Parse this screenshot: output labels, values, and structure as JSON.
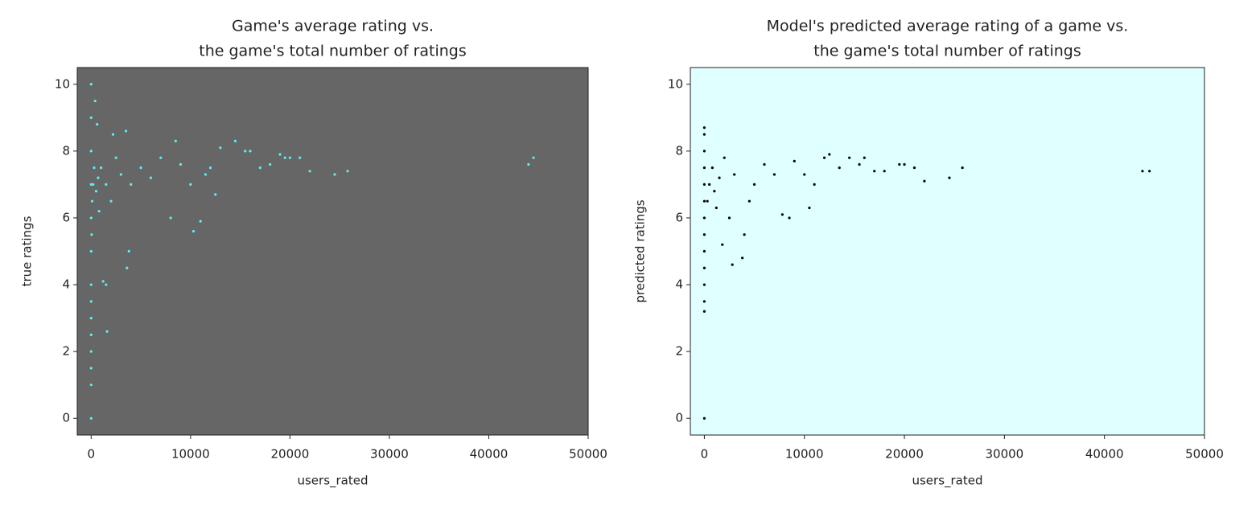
{
  "chart_data": [
    {
      "type": "scatter",
      "title": [
        "Game's average rating vs.",
        "the game's total number of ratings"
      ],
      "xlabel": "users_rated",
      "ylabel": "true ratings",
      "color": "#5ef0f0",
      "background": "#666666",
      "xlim": [
        -1400,
        50000
      ],
      "ylim": [
        -0.5,
        10.5
      ],
      "xticks": [
        0,
        10000,
        20000,
        30000,
        40000,
        50000
      ],
      "yticks": [
        0,
        2,
        4,
        6,
        8,
        10
      ],
      "x": [
        0,
        0,
        0,
        0,
        0,
        0,
        0,
        0,
        0,
        0,
        0,
        0,
        0,
        0,
        50,
        100,
        200,
        300,
        500,
        700,
        1000,
        1500,
        1600,
        1200,
        1500,
        2000,
        2500,
        3000,
        3500,
        3800,
        3600,
        4000,
        5000,
        6000,
        7000,
        8000,
        8500,
        9000,
        10000,
        10300,
        11000,
        11500,
        12000,
        12500,
        13000,
        14500,
        15500,
        16000,
        17000,
        18000,
        19000,
        19500,
        20000,
        21000,
        22000,
        24500,
        25800,
        44000,
        44500,
        600,
        400,
        800,
        2200
      ],
      "y": [
        0,
        1,
        1.5,
        2,
        2.5,
        3,
        3.5,
        4,
        5,
        6,
        7,
        8,
        9,
        10,
        5.5,
        6.5,
        7,
        7.5,
        6.8,
        7.2,
        7.5,
        7,
        2.6,
        4.1,
        4.0,
        6.5,
        7.8,
        7.3,
        8.6,
        5.0,
        4.5,
        7.0,
        7.5,
        7.2,
        7.8,
        6.0,
        8.3,
        7.6,
        7.0,
        5.6,
        5.9,
        7.3,
        7.5,
        6.7,
        8.1,
        8.3,
        8.0,
        8.0,
        7.5,
        7.6,
        7.9,
        7.8,
        7.8,
        7.8,
        7.4,
        7.3,
        7.4,
        7.6,
        7.8,
        8.8,
        9.5,
        6.2,
        8.5
      ]
    },
    {
      "type": "scatter",
      "title": [
        "Model's predicted average rating of a game vs.",
        "the game's total number of ratings"
      ],
      "xlabel": "users_rated",
      "ylabel": "predicted ratings",
      "color": "#000000",
      "background": "#e0ffff",
      "xlim": [
        -1400,
        50000
      ],
      "ylim": [
        -0.5,
        10.5
      ],
      "xticks": [
        0,
        10000,
        20000,
        30000,
        40000,
        50000
      ],
      "yticks": [
        0,
        2,
        4,
        6,
        8,
        10
      ],
      "x": [
        0,
        0,
        0,
        0,
        0,
        0,
        0,
        0,
        0,
        0,
        0,
        0,
        0,
        0,
        300,
        500,
        800,
        1000,
        1500,
        2000,
        2500,
        2800,
        3000,
        3800,
        4000,
        4500,
        5000,
        6000,
        7000,
        7800,
        8500,
        9000,
        10000,
        10500,
        11000,
        12000,
        12500,
        13500,
        14500,
        15500,
        16000,
        17000,
        18000,
        19500,
        20000,
        21000,
        22000,
        24500,
        25800,
        43800,
        44500,
        1200,
        1800
      ],
      "y": [
        0,
        3.2,
        3.5,
        4,
        4.5,
        5,
        5.5,
        6,
        6.5,
        7,
        7.5,
        8,
        8.5,
        8.7,
        6.5,
        7,
        7.5,
        6.8,
        7.2,
        7.8,
        6.0,
        4.6,
        7.3,
        4.8,
        5.5,
        6.5,
        7.0,
        7.6,
        7.3,
        6.1,
        6.0,
        7.7,
        7.3,
        6.3,
        7.0,
        7.8,
        7.9,
        7.5,
        7.8,
        7.6,
        7.8,
        7.4,
        7.4,
        7.6,
        7.6,
        7.5,
        7.1,
        7.2,
        7.5,
        7.4,
        7.4,
        6.3,
        5.2
      ]
    }
  ]
}
